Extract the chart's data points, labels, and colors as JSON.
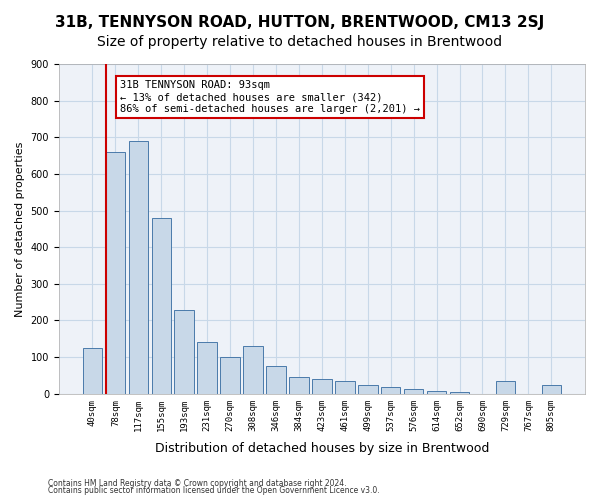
{
  "title": "31B, TENNYSON ROAD, HUTTON, BRENTWOOD, CM13 2SJ",
  "subtitle": "Size of property relative to detached houses in Brentwood",
  "xlabel": "Distribution of detached houses by size in Brentwood",
  "ylabel": "Number of detached properties",
  "bar_values": [
    125,
    660,
    690,
    480,
    230,
    140,
    100,
    130,
    75,
    47,
    40,
    35,
    25,
    18,
    12,
    8,
    6,
    0,
    35,
    0,
    25
  ],
  "bar_labels": [
    "40sqm",
    "78sqm",
    "117sqm",
    "155sqm",
    "193sqm",
    "231sqm",
    "270sqm",
    "308sqm",
    "346sqm",
    "384sqm",
    "423sqm",
    "461sqm",
    "499sqm",
    "537sqm",
    "576sqm",
    "614sqm",
    "652sqm",
    "690sqm",
    "729sqm",
    "767sqm",
    "805sqm"
  ],
  "bar_color": "#c8d8e8",
  "bar_edge_color": "#4a7aaa",
  "grid_color": "#c8d8e8",
  "bg_color": "#eef2f8",
  "vline_x": 1,
  "vline_color": "#cc0000",
  "annotation_text": "31B TENNYSON ROAD: 93sqm\n← 13% of detached houses are smaller (342)\n86% of semi-detached houses are larger (2,201) →",
  "annotation_box_color": "#ffffff",
  "annotation_box_edge": "#cc0000",
  "ylim": [
    0,
    900
  ],
  "yticks": [
    0,
    100,
    200,
    300,
    400,
    500,
    600,
    700,
    800,
    900
  ],
  "footer_line1": "Contains HM Land Registry data © Crown copyright and database right 2024.",
  "footer_line2": "Contains public sector information licensed under the Open Government Licence v3.0.",
  "title_fontsize": 11,
  "subtitle_fontsize": 10,
  "xlabel_fontsize": 9,
  "ylabel_fontsize": 8
}
